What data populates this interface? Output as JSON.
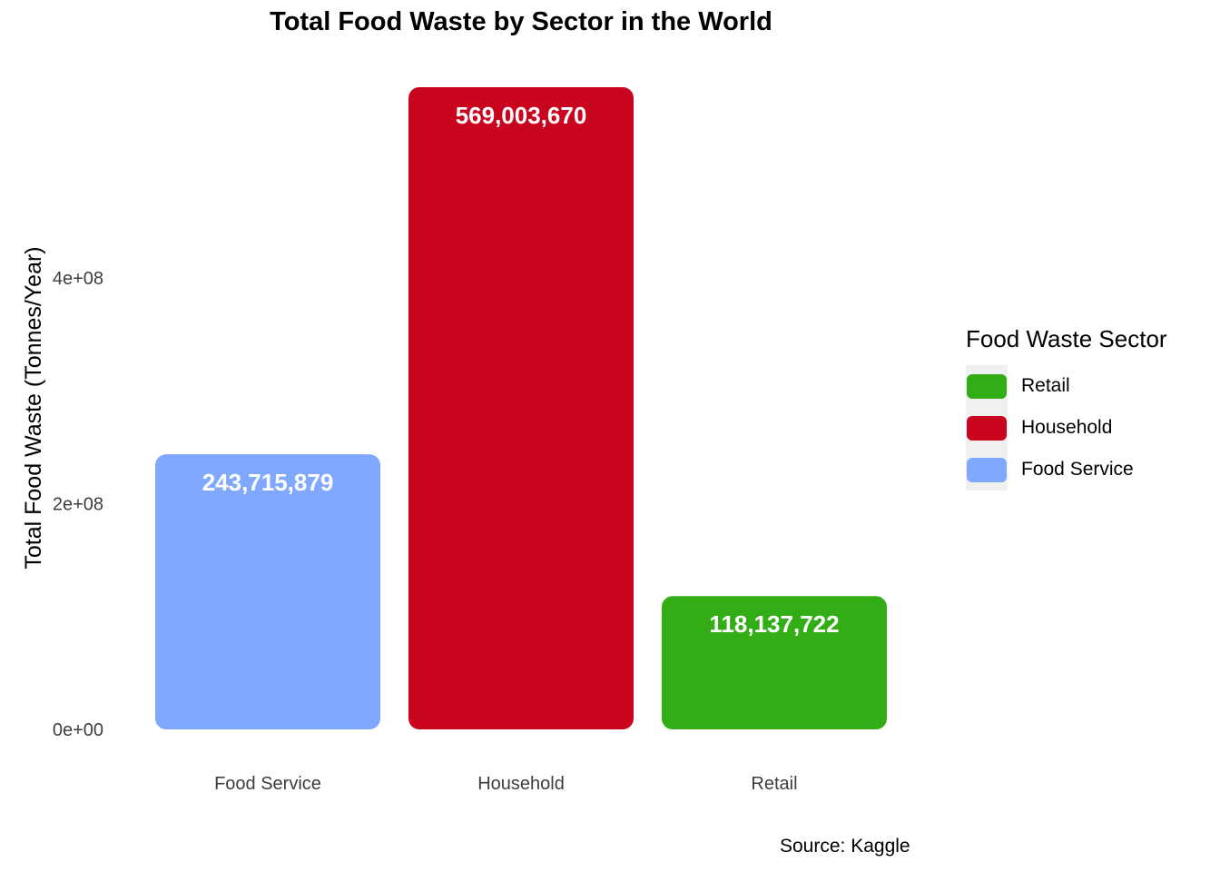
{
  "chart_data": {
    "type": "bar",
    "title": "Total Food Waste by Sector in the World",
    "xlabel": "",
    "ylabel": "Total Food Waste (Tonnes/Year)",
    "categories": [
      "Food Service",
      "Household",
      "Retail"
    ],
    "values": [
      243715879,
      569003670,
      118137722
    ],
    "value_labels": [
      "243,715,879",
      "569,003,670",
      "118,137,722"
    ],
    "colors": [
      "#80a8ff",
      "#c8041e",
      "#33ad16"
    ],
    "y_ticks": [
      {
        "value": 0,
        "label": "0e+00"
      },
      {
        "value": 200000000,
        "label": "2e+08"
      },
      {
        "value": 400000000,
        "label": "4e+08"
      }
    ],
    "ylim": [
      0,
      569003670
    ],
    "grid": false,
    "legend": {
      "title": "Food Waste Sector",
      "placement": "right",
      "items": [
        {
          "label": "Retail",
          "color": "#33ad16"
        },
        {
          "label": "Household",
          "color": "#c8041e"
        },
        {
          "label": "Food Service",
          "color": "#80a8ff"
        }
      ]
    },
    "caption": "Source: Kaggle"
  }
}
